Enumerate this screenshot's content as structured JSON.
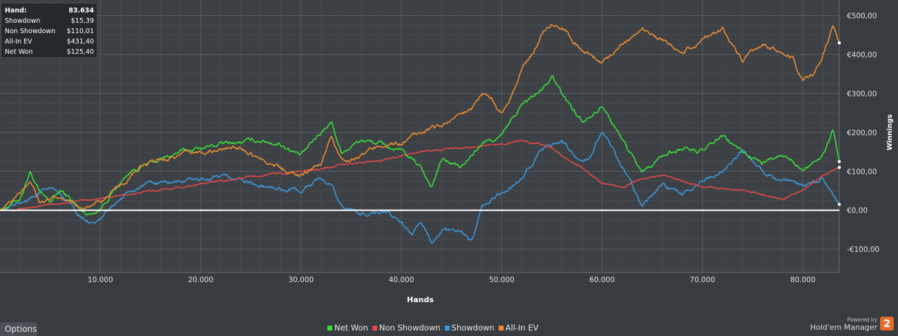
{
  "stats": [
    {
      "label": "Hand:",
      "value": "83.634"
    },
    {
      "label": "Showdown",
      "value": "$15,39"
    },
    {
      "label": "Non Showdown",
      "value": "$110,01"
    },
    {
      "label": "All-In EV",
      "value": "$431,40"
    },
    {
      "label": "Net Won",
      "value": "$125,40"
    }
  ],
  "options_label": "Options",
  "branding": {
    "powered_by": "Powered by",
    "product": "Hold'em Manager",
    "logo_text": "2"
  },
  "colors": {
    "background": "#383c40",
    "net_won": "#38e038",
    "non_showdown": "#e84848",
    "showdown": "#3c98dc",
    "all_in_ev": "#f08c30",
    "zero_line": "#ffffff"
  },
  "chart_data": {
    "type": "line",
    "xlabel": "Hands",
    "ylabel": "Winnings",
    "xlim": [
      0,
      83634
    ],
    "ylim": [
      -160,
      540
    ],
    "x_ticks": [
      10000,
      20000,
      30000,
      40000,
      50000,
      60000,
      70000,
      80000
    ],
    "x_tick_labels": [
      "10.000",
      "20.000",
      "30.000",
      "40.000",
      "50.000",
      "60.000",
      "70.000",
      "80.000"
    ],
    "y_ticks": [
      -100,
      0,
      100,
      200,
      300,
      400,
      500
    ],
    "y_tick_labels": [
      "-€100,00",
      "€0,00",
      "€100,00",
      "€200,00",
      "€300,00",
      "€400,00",
      "€500,00"
    ],
    "grid": true,
    "legend_position": "bottom-center",
    "series": [
      {
        "name": "Net Won",
        "color": "#38e038",
        "x": [
          0,
          2000,
          3000,
          4000,
          5000,
          6000,
          7000,
          8000,
          9000,
          10000,
          11000,
          12000,
          13000,
          14000,
          16000,
          18000,
          20000,
          22000,
          24000,
          26000,
          28000,
          30000,
          32000,
          33000,
          34000,
          36000,
          38000,
          40000,
          42000,
          43000,
          44000,
          46000,
          48000,
          50000,
          52000,
          54000,
          55000,
          56000,
          58000,
          60000,
          62000,
          64000,
          66000,
          68000,
          70000,
          72000,
          74000,
          76000,
          78000,
          80000,
          82000,
          83000,
          83634
        ],
        "values": [
          0,
          30,
          100,
          40,
          20,
          50,
          30,
          0,
          -10,
          5,
          40,
          70,
          100,
          110,
          130,
          150,
          160,
          170,
          175,
          180,
          170,
          140,
          200,
          230,
          150,
          180,
          170,
          150,
          110,
          60,
          130,
          110,
          170,
          190,
          270,
          310,
          340,
          300,
          230,
          270,
          180,
          100,
          140,
          160,
          150,
          190,
          150,
          120,
          140,
          110,
          140,
          210,
          125
        ]
      },
      {
        "name": "Non Showdown",
        "color": "#e84848",
        "x": [
          0,
          4000,
          8000,
          10000,
          14000,
          18000,
          22000,
          26000,
          30000,
          34000,
          38000,
          42000,
          46000,
          50000,
          52000,
          55000,
          56000,
          58000,
          60000,
          62000,
          64000,
          66000,
          70000,
          74000,
          78000,
          80000,
          82000,
          83634
        ],
        "values": [
          0,
          10,
          25,
          30,
          45,
          60,
          75,
          90,
          100,
          115,
          130,
          150,
          160,
          170,
          180,
          160,
          140,
          110,
          70,
          60,
          80,
          90,
          60,
          50,
          30,
          50,
          90,
          110
        ]
      },
      {
        "name": "Showdown",
        "color": "#3c98dc",
        "x": [
          0,
          3000,
          5000,
          7000,
          8000,
          9000,
          10000,
          12000,
          14000,
          16000,
          20000,
          24000,
          26000,
          30000,
          32000,
          33000,
          34000,
          36000,
          38000,
          40000,
          41000,
          42000,
          43000,
          44000,
          46000,
          47000,
          48000,
          50000,
          52000,
          54000,
          56000,
          58000,
          59000,
          60000,
          62000,
          64000,
          66000,
          68000,
          70000,
          72000,
          74000,
          76000,
          78000,
          80000,
          82000,
          83634
        ],
        "values": [
          0,
          30,
          60,
          20,
          -20,
          -30,
          -20,
          30,
          60,
          70,
          80,
          80,
          60,
          50,
          80,
          60,
          10,
          -10,
          0,
          -30,
          -60,
          -40,
          -80,
          -50,
          -60,
          -80,
          10,
          40,
          80,
          160,
          180,
          120,
          140,
          200,
          110,
          10,
          70,
          40,
          80,
          100,
          150,
          100,
          80,
          60,
          80,
          15
        ]
      },
      {
        "name": "All-In EV",
        "color": "#f08c30",
        "x": [
          0,
          2000,
          3000,
          4000,
          6000,
          8000,
          10000,
          12000,
          14000,
          16000,
          18000,
          20000,
          24000,
          28000,
          30000,
          32000,
          33000,
          34000,
          36000,
          38000,
          40000,
          42000,
          44000,
          46000,
          47000,
          48000,
          49000,
          50000,
          51000,
          52000,
          53000,
          54000,
          55000,
          56000,
          58000,
          60000,
          62000,
          64000,
          66000,
          68000,
          70000,
          72000,
          74000,
          76000,
          78000,
          79000,
          80000,
          81000,
          82000,
          83000,
          83634
        ],
        "values": [
          0,
          40,
          80,
          20,
          30,
          10,
          20,
          60,
          110,
          130,
          140,
          150,
          160,
          110,
          90,
          120,
          190,
          130,
          140,
          170,
          170,
          200,
          220,
          250,
          260,
          300,
          290,
          250,
          300,
          360,
          400,
          450,
          480,
          470,
          410,
          380,
          430,
          460,
          440,
          400,
          440,
          470,
          380,
          430,
          400,
          390,
          330,
          350,
          400,
          470,
          430
        ]
      }
    ]
  }
}
